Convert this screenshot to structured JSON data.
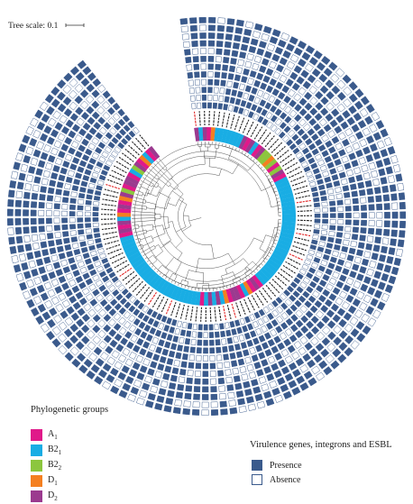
{
  "tree_scale": {
    "label": "Tree scale: 0.1"
  },
  "colors": {
    "A1": "#e0198a",
    "B2_1": "#19ade4",
    "B2_2": "#8cc63e",
    "D1": "#f47f20",
    "D2": "#9b3a8f",
    "presence": "#3a5a8c",
    "absence_border": "#3a5a8c",
    "branch": "#555555",
    "label_red": "#e02020",
    "label_dark": "#222222"
  },
  "phylogenetic_legend": {
    "title": "Phylogenetic groups",
    "groups": [
      {
        "key": "A1",
        "name": "A",
        "sub": "1"
      },
      {
        "key": "B2_1",
        "name": "B2",
        "sub": "1"
      },
      {
        "key": "B2_2",
        "name": "B2",
        "sub": "2"
      },
      {
        "key": "D1",
        "name": "D",
        "sub": "1"
      },
      {
        "key": "D2",
        "name": "D",
        "sub": "2"
      }
    ]
  },
  "gene_legend": {
    "title": "Virulence genes, integrons and ESBL",
    "presence": "Presence",
    "absence": "Absence"
  }
}
